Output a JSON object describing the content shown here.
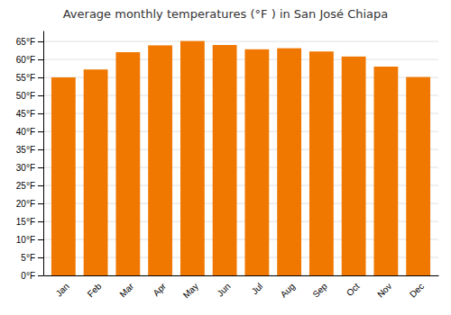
{
  "chart_data": {
    "type": "bar",
    "title": "Average monthly temperatures (°F ) in San José Chiapa",
    "categories": [
      "Jan",
      "Feb",
      "Mar",
      "Apr",
      "May",
      "Jun",
      "Jul",
      "Aug",
      "Sep",
      "Oct",
      "Nov",
      "Dec"
    ],
    "values": [
      55.0,
      57.2,
      62.0,
      63.9,
      65.1,
      64.0,
      62.8,
      63.1,
      62.2,
      60.8,
      58.0,
      55.1
    ],
    "color": "#F07800",
    "ylim": [
      0,
      68
    ],
    "yticks": [
      {
        "value": 0,
        "label": "0°F"
      },
      {
        "value": 5,
        "label": "5°F"
      },
      {
        "value": 10,
        "label": "10°F"
      },
      {
        "value": 15,
        "label": "15°F"
      },
      {
        "value": 20,
        "label": "20°F"
      },
      {
        "value": 25,
        "label": "25°F"
      },
      {
        "value": 30,
        "label": "30°F"
      },
      {
        "value": 35,
        "label": "35°F"
      },
      {
        "value": 40,
        "label": "40°F"
      },
      {
        "value": 45,
        "label": "45°F"
      },
      {
        "value": 50,
        "label": "50°F"
      },
      {
        "value": 55,
        "label": "55°F"
      },
      {
        "value": 60,
        "label": "60°F"
      },
      {
        "value": 65,
        "label": "65°F"
      }
    ],
    "grid": true
  }
}
